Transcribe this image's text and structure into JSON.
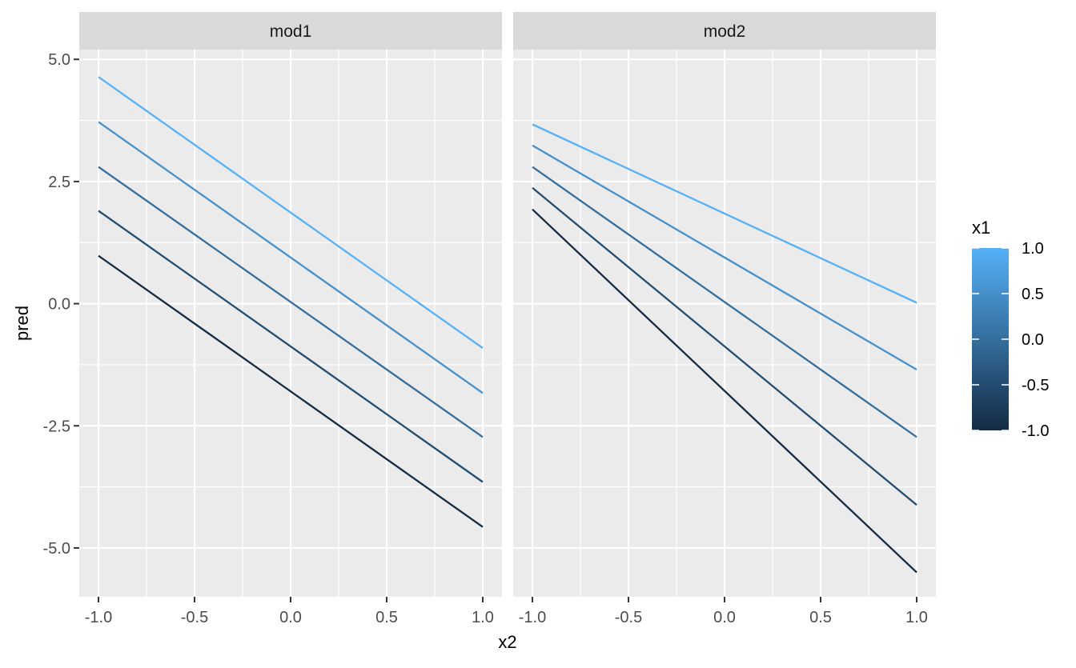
{
  "chart_data": {
    "type": "line",
    "xlabel": "x2",
    "ylabel": "pred",
    "xlim": [
      -1.1,
      1.1
    ],
    "ylim": [
      -6.0,
      5.2
    ],
    "x_ticks": [
      -1.0,
      -0.5,
      0.0,
      0.5,
      1.0
    ],
    "x_tick_labels": [
      "-1.0",
      "-0.5",
      "0.0",
      "0.5",
      "1.0"
    ],
    "y_ticks": [
      5.0,
      2.5,
      0.0,
      -2.5,
      -5.0
    ],
    "y_tick_labels": [
      "5.0",
      "2.5",
      "0.0",
      "-2.5",
      "-5.0"
    ],
    "grid": true,
    "legend": {
      "title": "x1",
      "placement": "right",
      "type": "colorbar",
      "min": -1.0,
      "max": 1.0,
      "breaks": [
        1.0,
        0.5,
        0.0,
        -0.5,
        -1.0
      ],
      "labels": [
        "1.0",
        "0.5",
        "0.0",
        "-0.5",
        "-1.0"
      ],
      "low_color": "#132B43",
      "high_color": "#56B1F7"
    },
    "panels": [
      {
        "strip": "mod1",
        "series": [
          {
            "x1": -1.0,
            "x": [
              -1.0,
              1.0
            ],
            "y": [
              0.98,
              -4.57
            ]
          },
          {
            "x1": -0.5,
            "x": [
              -1.0,
              1.0
            ],
            "y": [
              1.9,
              -3.65
            ]
          },
          {
            "x1": 0.0,
            "x": [
              -1.0,
              1.0
            ],
            "y": [
              2.8,
              -2.73
            ]
          },
          {
            "x1": 0.5,
            "x": [
              -1.0,
              1.0
            ],
            "y": [
              3.72,
              -1.83
            ]
          },
          {
            "x1": 1.0,
            "x": [
              -1.0,
              1.0
            ],
            "y": [
              4.64,
              -0.91
            ]
          }
        ]
      },
      {
        "strip": "mod2",
        "series": [
          {
            "x1": -1.0,
            "x": [
              -1.0,
              1.0
            ],
            "y": [
              1.93,
              -5.5
            ]
          },
          {
            "x1": -0.5,
            "x": [
              -1.0,
              1.0
            ],
            "y": [
              2.37,
              -4.12
            ]
          },
          {
            "x1": 0.0,
            "x": [
              -1.0,
              1.0
            ],
            "y": [
              2.8,
              -2.73
            ]
          },
          {
            "x1": 0.5,
            "x": [
              -1.0,
              1.0
            ],
            "y": [
              3.24,
              -1.35
            ]
          },
          {
            "x1": 1.0,
            "x": [
              -1.0,
              1.0
            ],
            "y": [
              3.67,
              0.02
            ]
          }
        ]
      }
    ]
  }
}
